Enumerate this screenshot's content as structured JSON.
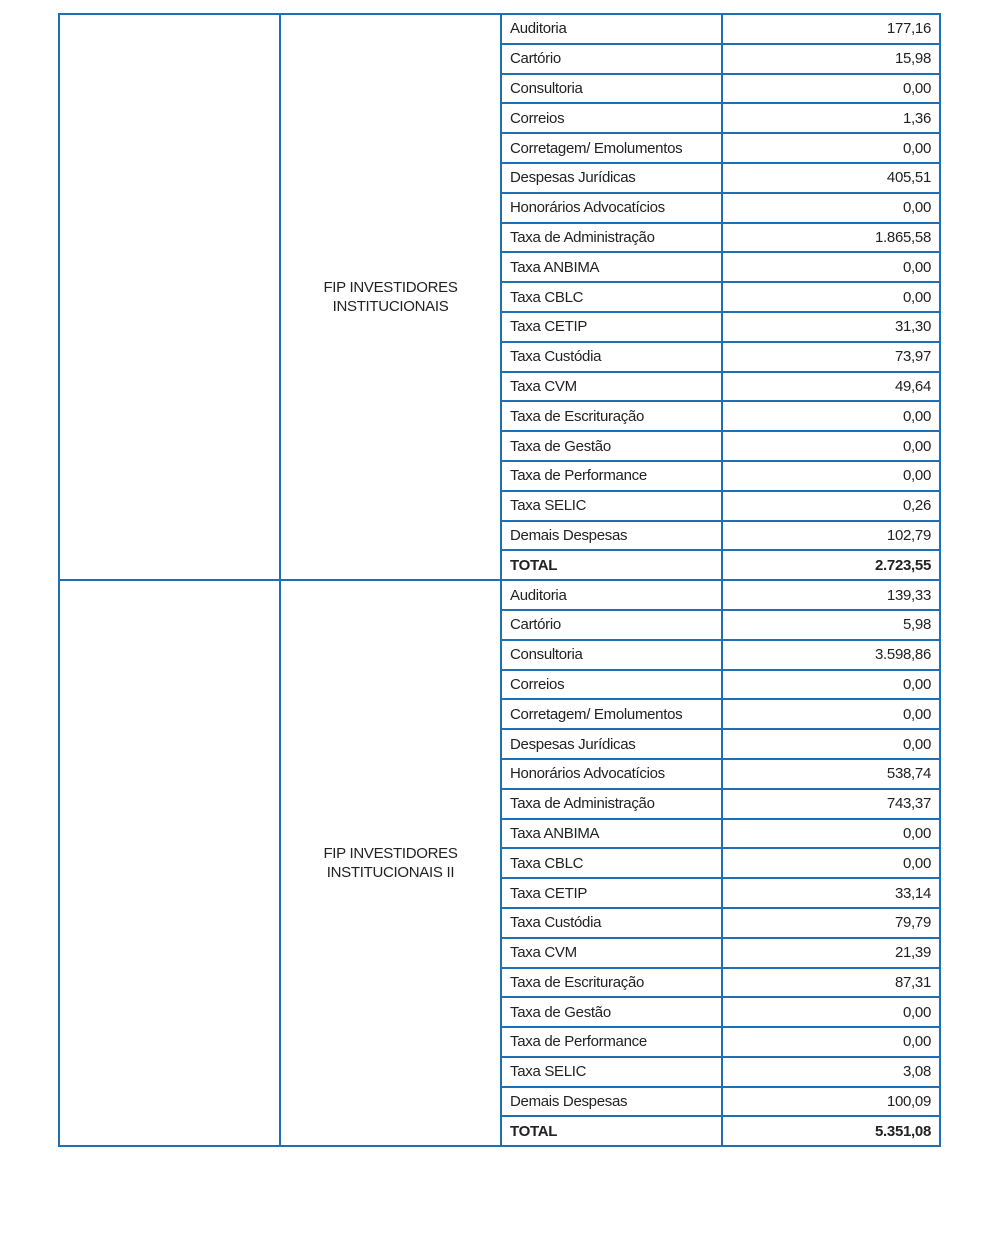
{
  "groups": [
    {
      "fund": "FIP INVESTIDORES INSTITUCIONAIS",
      "rows": [
        {
          "item": "Auditoria",
          "value": "177,16"
        },
        {
          "item": "Cartório",
          "value": "15,98"
        },
        {
          "item": "Consultoria",
          "value": "0,00"
        },
        {
          "item": "Correios",
          "value": "1,36"
        },
        {
          "item": "Corretagem/ Emolumentos",
          "value": "0,00"
        },
        {
          "item": "Despesas Jurídicas",
          "value": "405,51"
        },
        {
          "item": "Honorários Advocatícios",
          "value": "0,00"
        },
        {
          "item": "Taxa de Administração",
          "value": "1.865,58"
        },
        {
          "item": "Taxa ANBIMA",
          "value": "0,00"
        },
        {
          "item": "Taxa CBLC",
          "value": "0,00"
        },
        {
          "item": "Taxa CETIP",
          "value": "31,30"
        },
        {
          "item": "Taxa Custódia",
          "value": "73,97"
        },
        {
          "item": "Taxa CVM",
          "value": "49,64"
        },
        {
          "item": "Taxa de Escrituração",
          "value": "0,00"
        },
        {
          "item": "Taxa de Gestão",
          "value": "0,00"
        },
        {
          "item": "Taxa de Performance",
          "value": "0,00"
        },
        {
          "item": "Taxa SELIC",
          "value": "0,26"
        },
        {
          "item": "Demais Despesas",
          "value": "102,79"
        },
        {
          "item": "TOTAL",
          "value": "2.723,55"
        }
      ]
    },
    {
      "fund": "FIP INVESTIDORES INSTITUCIONAIS II",
      "rows": [
        {
          "item": "Auditoria",
          "value": "139,33"
        },
        {
          "item": "Cartório",
          "value": "5,98"
        },
        {
          "item": "Consultoria",
          "value": "3.598,86"
        },
        {
          "item": "Correios",
          "value": "0,00"
        },
        {
          "item": "Corretagem/ Emolumentos",
          "value": "0,00"
        },
        {
          "item": "Despesas Jurídicas",
          "value": "0,00"
        },
        {
          "item": "Honorários Advocatícios",
          "value": "538,74"
        },
        {
          "item": "Taxa de Administração",
          "value": "743,37"
        },
        {
          "item": "Taxa ANBIMA",
          "value": "0,00"
        },
        {
          "item": "Taxa CBLC",
          "value": "0,00"
        },
        {
          "item": "Taxa CETIP",
          "value": "33,14"
        },
        {
          "item": "Taxa Custódia",
          "value": "79,79"
        },
        {
          "item": "Taxa CVM",
          "value": "21,39"
        },
        {
          "item": "Taxa de Escrituração",
          "value": "87,31"
        },
        {
          "item": "Taxa de Gestão",
          "value": "0,00"
        },
        {
          "item": "Taxa de Performance",
          "value": "0,00"
        },
        {
          "item": "Taxa SELIC",
          "value": "3,08"
        },
        {
          "item": "Demais Despesas",
          "value": "100,09"
        },
        {
          "item": "TOTAL",
          "value": "5.351,08"
        }
      ]
    }
  ]
}
